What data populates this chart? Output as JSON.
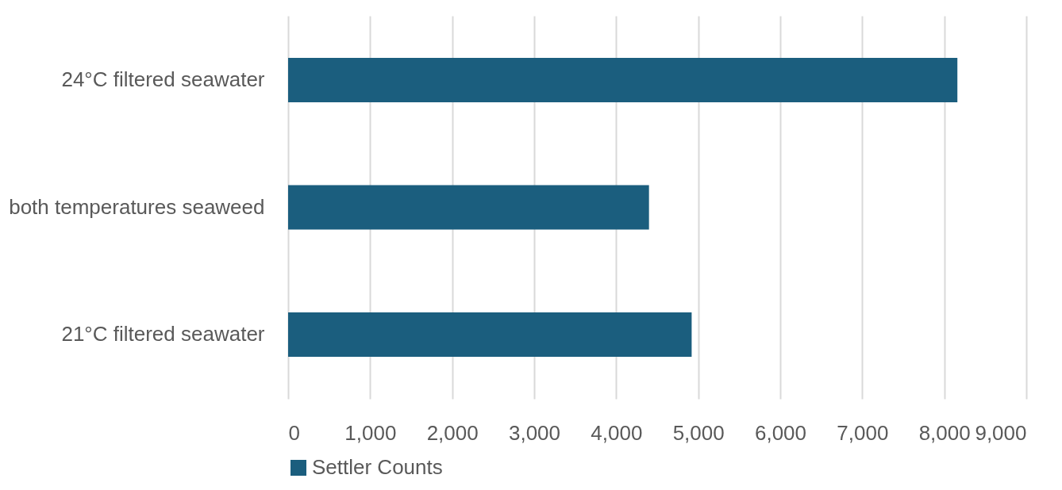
{
  "chart_data": {
    "type": "bar",
    "orientation": "horizontal",
    "categories": [
      "24°C filtered seawater",
      "both temperatures seaweed",
      "21°C filtered seawater"
    ],
    "series": [
      {
        "name": "Settler Counts",
        "color": "#1b5e7e",
        "values": [
          8160,
          4400,
          4920
        ]
      }
    ],
    "xlim": [
      0,
      9000
    ],
    "xticks": [
      0,
      {
        "value": 1000,
        "label": "1,000"
      },
      {
        "value": 2000,
        "label": "2,000"
      },
      {
        "value": 3000,
        "label": "3,000"
      },
      {
        "value": 4000,
        "label": "4,000"
      },
      {
        "value": 5000,
        "label": "5,000"
      },
      {
        "value": 6000,
        "label": "6,000"
      },
      {
        "value": 7000,
        "label": "7,000"
      },
      {
        "value": 8000,
        "label": "8,000"
      },
      {
        "value": 9000,
        "label": "9,000"
      }
    ],
    "grid": "x",
    "legend": "bottom"
  }
}
